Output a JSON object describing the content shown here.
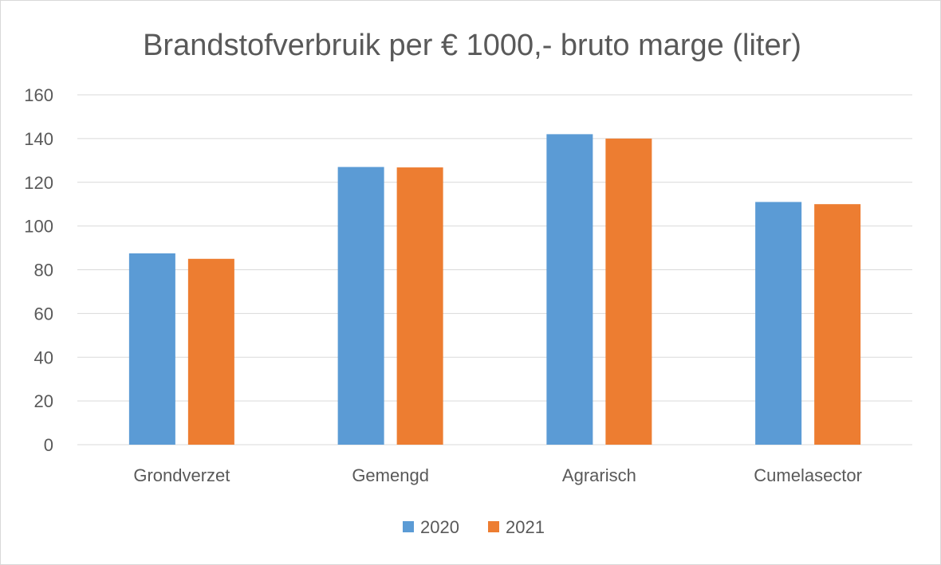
{
  "chart_data": {
    "type": "bar",
    "title": "Brandstofverbruik per € 1000,- bruto marge (liter)",
    "xlabel": "",
    "ylabel": "",
    "categories": [
      "Grondverzet",
      "Gemengd",
      "Agrarisch",
      "Cumelasector"
    ],
    "series": [
      {
        "name": "2020",
        "values": [
          87.5,
          127,
          142,
          111
        ],
        "color": "#5b9bd5"
      },
      {
        "name": "2021",
        "values": [
          85,
          126.8,
          140,
          110
        ],
        "color": "#ed7d31"
      }
    ],
    "ylim": [
      0,
      160
    ],
    "yticks": [
      "0",
      "20",
      "40",
      "60",
      "80",
      "100",
      "120",
      "140",
      "160"
    ],
    "grid": true,
    "legend_position": "bottom"
  }
}
